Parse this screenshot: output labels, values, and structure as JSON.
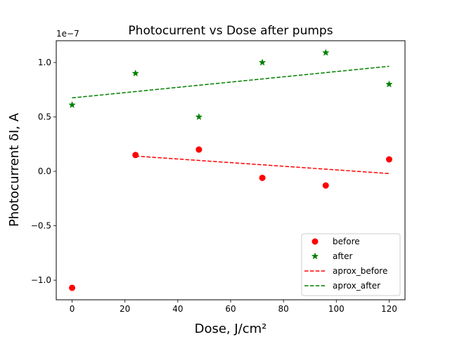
{
  "chart_data": {
    "type": "scatter",
    "title": "Photocurrent vs Dose after pumps",
    "xlabel": "Dose, J/cm²",
    "ylabel": "Photocurrent δI, A",
    "y_offset_label": "1e−7",
    "xlim": [
      -6,
      126
    ],
    "ylim": [
      -1.18,
      1.2
    ],
    "y_scale_factor": 1e-07,
    "xticks": [
      0,
      20,
      40,
      60,
      80,
      100,
      120
    ],
    "yticks": [
      -1.0,
      -0.5,
      0.0,
      0.5,
      1.0
    ],
    "ytick_labels": [
      "−1.0",
      "−0.5",
      "0.0",
      "0.5",
      "1.0"
    ],
    "grid": false,
    "legend_position": "lower-right",
    "series": [
      {
        "name": "before",
        "kind": "scatter",
        "marker": "circle",
        "color": "#ff0000",
        "x": [
          0,
          24,
          48,
          72,
          96,
          120
        ],
        "y": [
          -1.07,
          0.15,
          0.2,
          -0.06,
          -0.13,
          0.11
        ]
      },
      {
        "name": "after",
        "kind": "scatter",
        "marker": "star",
        "color": "#008000",
        "x": [
          0,
          24,
          48,
          72,
          96,
          120
        ],
        "y": [
          0.61,
          0.9,
          0.5,
          1.0,
          1.09,
          0.8
        ]
      },
      {
        "name": "aprox_before",
        "kind": "dashed-line",
        "color": "#ff0000",
        "x": [
          24,
          120
        ],
        "y": [
          0.14,
          -0.02
        ]
      },
      {
        "name": "aprox_after",
        "kind": "dashed-line",
        "color": "#008000",
        "x": [
          0,
          120
        ],
        "y": [
          0.675,
          0.965
        ]
      }
    ]
  }
}
